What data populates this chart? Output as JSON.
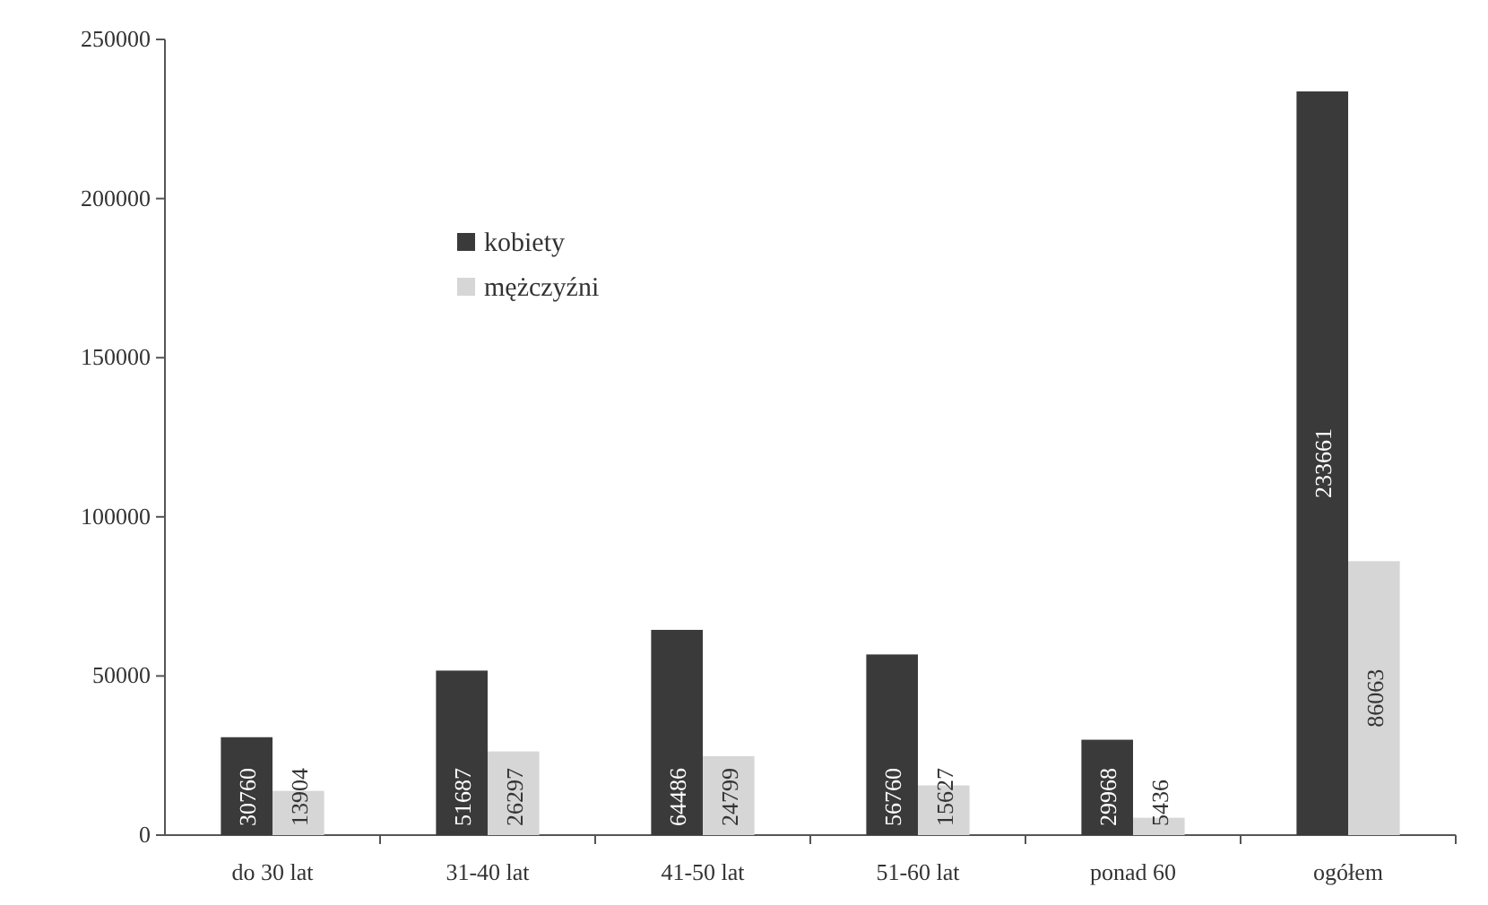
{
  "chart_data": {
    "type": "bar",
    "categories": [
      "do 30 lat",
      "31-40 lat",
      "41-50 lat",
      "51-60 lat",
      "ponad 60",
      "ogółem"
    ],
    "series": [
      {
        "name": "kobiety",
        "color": "#3a3a3a",
        "values": [
          30760,
          51687,
          64486,
          56760,
          29968,
          233661
        ]
      },
      {
        "name": "mężczyźni",
        "color": "#d6d6d6",
        "values": [
          13904,
          26297,
          24799,
          15627,
          5436,
          86063
        ]
      }
    ],
    "ylim": [
      0,
      250000
    ],
    "yticks": [
      0,
      50000,
      100000,
      150000,
      200000,
      250000
    ],
    "grid": false,
    "legend": "top left",
    "data_labels": true
  }
}
